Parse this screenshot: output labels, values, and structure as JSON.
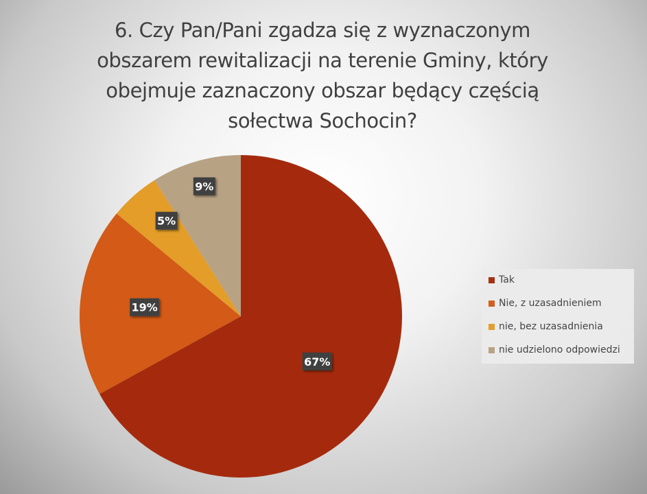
{
  "chart_data": {
    "type": "pie",
    "title": "6. Czy Pan/Pani zgadza się z wyznaczonym\nobszarem rewitalizacji  na terenie Gminy, który\nobejmuje zaznaczony obszar będący częścią\nsołectwa Sochocin?",
    "categories": [
      "Tak",
      "Nie, z uzasadnieniem",
      "nie, bez uzasadnienia",
      "nie udzielono odpowiedzi"
    ],
    "values": [
      67,
      19,
      5,
      9
    ],
    "data_labels": [
      "67%",
      "19%",
      "5%",
      "9%"
    ],
    "colors": [
      "#A52A0D",
      "#D35A17",
      "#E39D28",
      "#B8A284"
    ],
    "legend_position": "right",
    "start_angle": "12 o'clock, clockwise"
  }
}
